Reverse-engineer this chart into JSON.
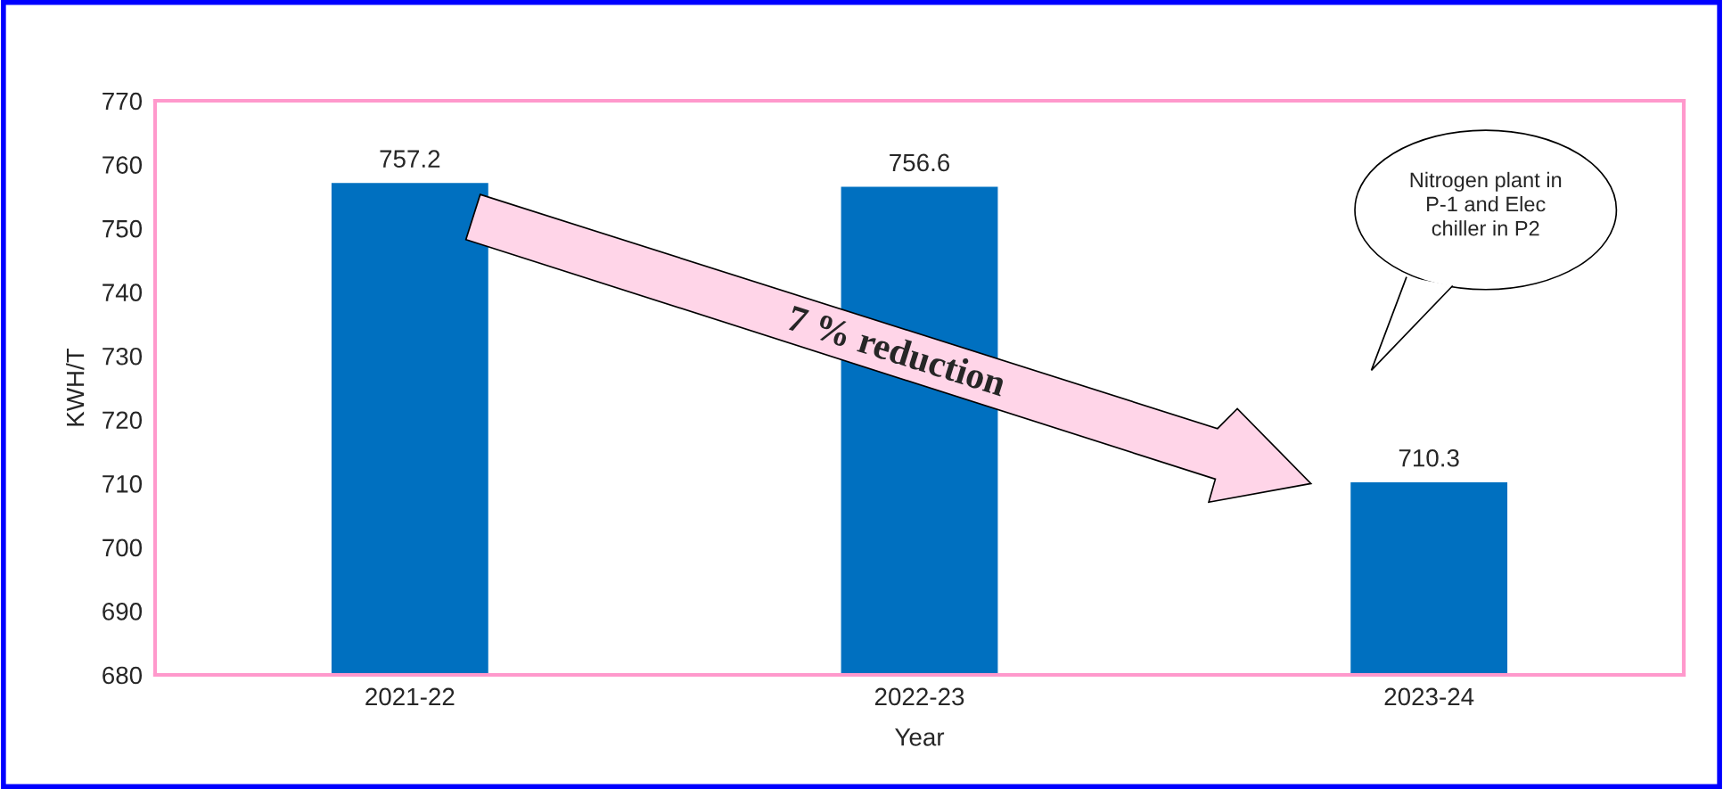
{
  "chart_data": {
    "type": "bar",
    "xlabel": "Year",
    "ylabel": "KWH/T",
    "categories": [
      "2021-22",
      "2022-23",
      "2023-24"
    ],
    "values": [
      757.2,
      756.6,
      710.3
    ],
    "color": "#0070c0",
    "ylim": [
      680,
      770
    ],
    "yticks": [
      680,
      690,
      700,
      710,
      720,
      730,
      740,
      750,
      760,
      770
    ],
    "grid": false,
    "data_labels": true,
    "annotations": [
      "7 % reduction",
      "Nitrogen plant in\nP-1 and Elec\nchiller in P2"
    ]
  }
}
